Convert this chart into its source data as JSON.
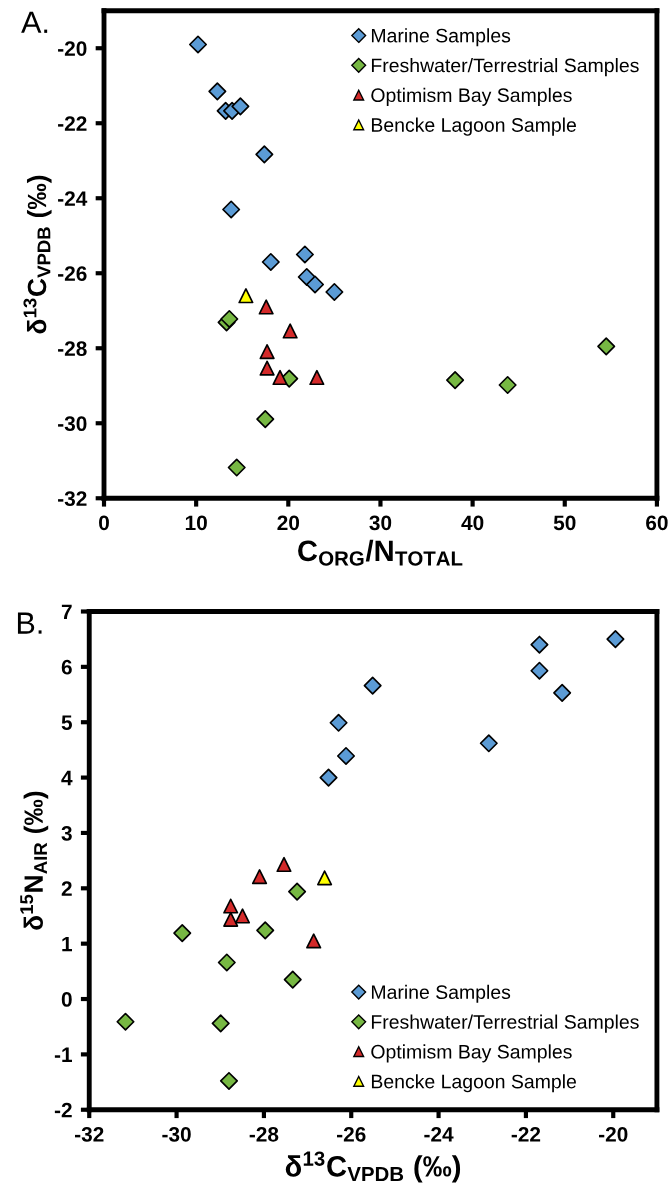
{
  "chart_data": [
    {
      "type": "scatter",
      "title": "A.",
      "xlabel": "C$_{ORG}$/N$_{TOTAL}$",
      "ylabel": "δ$^{13}$C$_{VPDB}$ (‰)",
      "xlim": [
        0,
        60
      ],
      "xticks": [
        0,
        10,
        20,
        30,
        40,
        50,
        60
      ],
      "ylim": [
        -32,
        -19
      ],
      "yticks": [
        -32,
        -30,
        -28,
        -26,
        -24,
        -22,
        -20
      ],
      "grid": false,
      "legend": "top right",
      "series": [
        {
          "name": "Marine Samples",
          "color": "#5b9bd5",
          "marker": "diamond",
          "x": [
            10.2,
            12.3,
            13.2,
            13.9,
            14.8,
            17.4,
            13.8,
            21.8,
            18.1,
            22.0,
            22.9,
            25.0
          ],
          "values": [
            -19.9,
            -21.15,
            -21.67,
            -21.67,
            -21.55,
            -22.83,
            -24.3,
            -25.5,
            -25.7,
            -26.1,
            -26.3,
            -26.5
          ]
        },
        {
          "name": "Freshwater/Terrestrial Samples",
          "color": "#77b843",
          "marker": "diamond",
          "x": [
            13.3,
            13.6,
            20.1,
            17.5,
            14.4,
            38.1,
            43.8,
            54.5
          ],
          "values": [
            -27.31,
            -27.22,
            -28.81,
            -29.89,
            -31.18,
            -28.85,
            -28.98,
            -27.95
          ]
        },
        {
          "name": "Optimism Bay Samples",
          "color": "#d42a2a",
          "marker": "triangle",
          "x": [
            17.6,
            20.2,
            17.7,
            17.7,
            19.1,
            23.1
          ],
          "values": [
            -26.9,
            -27.54,
            -28.09,
            -28.53,
            -28.78,
            -28.78
          ]
        },
        {
          "name": "Bencke Lagoon Sample",
          "color": "#ffff00",
          "marker": "triangle",
          "x": [
            15.4
          ],
          "values": [
            -26.6
          ]
        }
      ]
    },
    {
      "type": "scatter",
      "title": "B.",
      "xlabel": "δ$^{13}$C$_{VPDB}$ (‰)",
      "ylabel": "δ$^{15}$N$_{AIR}$ (‰)",
      "xlim": [
        -32,
        -19
      ],
      "xticks": [
        -32,
        -30,
        -28,
        -26,
        -24,
        -22,
        -20
      ],
      "ylim": [
        -2,
        7
      ],
      "yticks": [
        -2,
        -1,
        0,
        1,
        2,
        3,
        4,
        5,
        6,
        7
      ],
      "grid": false,
      "legend": "bottom right",
      "series": [
        {
          "name": "Marine Samples",
          "color": "#5b9bd5",
          "marker": "diamond",
          "x": [
            -19.95,
            -21.69,
            -21.69,
            -21.17,
            -22.85,
            -25.51,
            -26.29,
            -26.12,
            -26.52
          ],
          "values": [
            6.5,
            6.4,
            5.93,
            5.53,
            4.62,
            5.66,
            4.99,
            4.39,
            4.0
          ]
        },
        {
          "name": "Freshwater/Terrestrial Samples",
          "color": "#77b843",
          "marker": "diamond",
          "x": [
            -31.17,
            -29.87,
            -28.99,
            -28.85,
            -28.8,
            -27.97,
            -27.34,
            -27.24
          ],
          "values": [
            -0.41,
            1.19,
            -0.44,
            0.66,
            -1.48,
            1.24,
            0.35,
            1.94
          ]
        },
        {
          "name": "Optimism Bay Samples",
          "color": "#d42a2a",
          "marker": "triangle",
          "x": [
            -27.54,
            -28.1,
            -28.76,
            -28.76,
            -28.49,
            -26.86
          ],
          "values": [
            2.43,
            2.21,
            1.68,
            1.44,
            1.5,
            1.05
          ]
        },
        {
          "name": "Bencke Lagoon Sample",
          "color": "#ffff00",
          "marker": "triangle",
          "x": [
            -26.61
          ],
          "values": [
            2.19
          ]
        }
      ]
    }
  ]
}
